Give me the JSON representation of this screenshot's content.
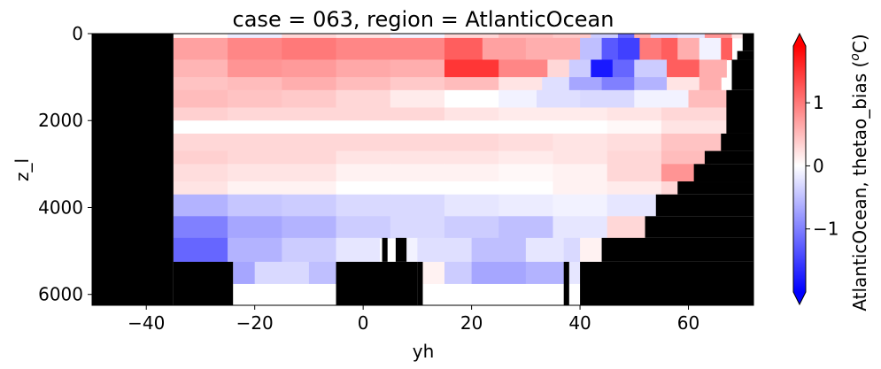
{
  "chart_data": {
    "type": "heatmap",
    "title": "case = 063, region = AtlanticOcean",
    "xlabel": "yh",
    "ylabel": "z_l",
    "colorbar_label": "AtlanticOcean, thetao_bias (",
    "colorbar_unit_sup": "o",
    "colorbar_unit_tail": "C)",
    "xlim": [
      -50,
      72
    ],
    "ylim_inverted": [
      6250,
      0
    ],
    "x_ticks": [
      -40,
      -20,
      0,
      20,
      40,
      60
    ],
    "y_ticks": [
      0,
      2000,
      4000,
      6000
    ],
    "x_tick_labels": [
      "−40",
      "−20",
      "0",
      "20",
      "40",
      "60"
    ],
    "y_tick_labels": [
      "0",
      "2000",
      "4000",
      "6000"
    ],
    "colorbar_ticks": [
      1,
      0,
      -1
    ],
    "colorbar_tick_labels": [
      "1",
      "0",
      "−1"
    ],
    "colorbar_range": [
      -2,
      1.9
    ],
    "colorbar_extend": "both",
    "colormap": "bwr",
    "colors": {
      "missing": "#000000",
      "low": "#0000ff",
      "mid": "#ffffff",
      "high": "#ff0000"
    },
    "layer_bounds_depth": [
      0,
      100,
      600,
      1000,
      1300,
      1700,
      2000,
      2300,
      2700,
      3000,
      3400,
      3700,
      4200,
      4700,
      5250,
      5750,
      6250
    ],
    "layers": [
      [
        [
          -35,
          -25,
          0.05
        ],
        [
          -25,
          -15,
          -0.15
        ],
        [
          -15,
          -5,
          0.3
        ],
        [
          -5,
          5,
          0.2
        ],
        [
          5,
          15,
          -0.1
        ],
        [
          15,
          25,
          0.3
        ],
        [
          25,
          35,
          0.5
        ],
        [
          35,
          42,
          0.4
        ],
        [
          42,
          47,
          -0.4
        ],
        [
          47,
          50,
          -1.2
        ],
        [
          50,
          53,
          0.6
        ],
        [
          53,
          58,
          -0.3
        ],
        [
          58,
          63,
          -0.2
        ],
        [
          63,
          68,
          0.8
        ],
        [
          68,
          70,
          0.2
        ]
      ],
      [
        [
          -35,
          -25,
          0.7
        ],
        [
          -25,
          -15,
          0.9
        ],
        [
          -15,
          -5,
          1.0
        ],
        [
          -5,
          5,
          0.9
        ],
        [
          5,
          15,
          0.9
        ],
        [
          15,
          22,
          1.2
        ],
        [
          22,
          30,
          0.7
        ],
        [
          30,
          40,
          0.6
        ],
        [
          40,
          44,
          -0.5
        ],
        [
          44,
          47,
          -1.3
        ],
        [
          47,
          51,
          -1.5
        ],
        [
          51,
          55,
          1.0
        ],
        [
          55,
          58,
          1.2
        ],
        [
          58,
          62,
          0.6
        ],
        [
          62,
          66,
          -0.1
        ],
        [
          66,
          68,
          1.2
        ]
      ],
      [
        [
          -35,
          -25,
          0.55
        ],
        [
          -25,
          -15,
          0.8
        ],
        [
          -15,
          -5,
          0.75
        ],
        [
          -5,
          5,
          0.65
        ],
        [
          5,
          15,
          0.6
        ],
        [
          15,
          25,
          1.5
        ],
        [
          25,
          34,
          0.9
        ],
        [
          34,
          38,
          0.3
        ],
        [
          38,
          42,
          -0.4
        ],
        [
          42,
          46,
          -1.8
        ],
        [
          46,
          50,
          -1.2
        ],
        [
          50,
          56,
          -0.4
        ],
        [
          56,
          62,
          1.2
        ],
        [
          62,
          67,
          0.6
        ]
      ],
      [
        [
          -35,
          -25,
          0.45
        ],
        [
          -25,
          -15,
          0.5
        ],
        [
          -15,
          -5,
          0.6
        ],
        [
          -5,
          5,
          0.5
        ],
        [
          5,
          15,
          0.4
        ],
        [
          15,
          25,
          0.5
        ],
        [
          25,
          33,
          0.2
        ],
        [
          33,
          38,
          -0.25
        ],
        [
          38,
          44,
          -0.7
        ],
        [
          44,
          50,
          -1.0
        ],
        [
          50,
          56,
          -0.6
        ],
        [
          56,
          62,
          0.2
        ],
        [
          62,
          66,
          0.6
        ]
      ],
      [
        [
          -35,
          -25,
          0.5
        ],
        [
          -25,
          -15,
          0.45
        ],
        [
          -15,
          -5,
          0.4
        ],
        [
          -5,
          5,
          0.3
        ],
        [
          5,
          15,
          0.15
        ],
        [
          15,
          25,
          0.0
        ],
        [
          25,
          32,
          -0.1
        ],
        [
          32,
          40,
          -0.25
        ],
        [
          40,
          50,
          -0.3
        ],
        [
          50,
          60,
          -0.1
        ],
        [
          60,
          67,
          0.5
        ]
      ],
      [
        [
          -35,
          -25,
          0.35
        ],
        [
          -25,
          -15,
          0.3
        ],
        [
          -15,
          -5,
          0.3
        ],
        [
          -5,
          5,
          0.3
        ],
        [
          5,
          15,
          0.3
        ],
        [
          15,
          25,
          0.2
        ],
        [
          25,
          35,
          0.15
        ],
        [
          35,
          45,
          0.15
        ],
        [
          45,
          55,
          0.2
        ],
        [
          55,
          67,
          0.3
        ]
      ],
      [
        [
          -35,
          -25,
          0.0
        ],
        [
          -25,
          -15,
          0.0
        ],
        [
          -15,
          -5,
          0.0
        ],
        [
          -5,
          5,
          0.0
        ],
        [
          5,
          15,
          0.0
        ],
        [
          15,
          25,
          0.0
        ],
        [
          25,
          35,
          0.0
        ],
        [
          35,
          45,
          0.0
        ],
        [
          45,
          55,
          0.05
        ],
        [
          55,
          67,
          0.2
        ]
      ],
      [
        [
          -35,
          -25,
          0.3
        ],
        [
          -25,
          -15,
          0.3
        ],
        [
          -15,
          -5,
          0.3
        ],
        [
          -5,
          5,
          0.3
        ],
        [
          5,
          15,
          0.3
        ],
        [
          15,
          25,
          0.3
        ],
        [
          25,
          35,
          0.25
        ],
        [
          35,
          45,
          0.2
        ],
        [
          45,
          55,
          0.25
        ],
        [
          55,
          67,
          0.45
        ]
      ],
      [
        [
          -35,
          -25,
          0.35
        ],
        [
          -25,
          -15,
          0.3
        ],
        [
          -15,
          -5,
          0.3
        ],
        [
          -5,
          5,
          0.2
        ],
        [
          5,
          15,
          0.2
        ],
        [
          15,
          25,
          0.2
        ],
        [
          25,
          35,
          0.15
        ],
        [
          35,
          45,
          0.2
        ],
        [
          45,
          55,
          0.3
        ],
        [
          55,
          64,
          0.5
        ]
      ],
      [
        [
          -35,
          -25,
          0.25
        ],
        [
          -25,
          -15,
          0.2
        ],
        [
          -15,
          -5,
          0.2
        ],
        [
          -5,
          5,
          0.1
        ],
        [
          5,
          15,
          0.1
        ],
        [
          15,
          25,
          0.1
        ],
        [
          25,
          35,
          0.05
        ],
        [
          35,
          45,
          0.1
        ],
        [
          45,
          55,
          0.3
        ],
        [
          55,
          61,
          0.8
        ]
      ],
      [
        [
          -35,
          -25,
          0.2
        ],
        [
          -25,
          -15,
          0.1
        ],
        [
          -15,
          -5,
          0.1
        ],
        [
          -5,
          5,
          0.0
        ],
        [
          5,
          15,
          0.0
        ],
        [
          15,
          25,
          0.0
        ],
        [
          25,
          35,
          0.0
        ],
        [
          35,
          45,
          0.1
        ],
        [
          45,
          55,
          0.15
        ],
        [
          55,
          58,
          0.3
        ]
      ],
      [
        [
          -35,
          -25,
          -0.6
        ],
        [
          -25,
          -15,
          -0.45
        ],
        [
          -15,
          -5,
          -0.4
        ],
        [
          -5,
          5,
          -0.3
        ],
        [
          5,
          15,
          -0.3
        ],
        [
          15,
          25,
          -0.2
        ],
        [
          25,
          35,
          -0.15
        ],
        [
          35,
          45,
          -0.1
        ],
        [
          45,
          55,
          -0.2
        ]
      ],
      [
        [
          -35,
          -25,
          -1.0
        ],
        [
          -25,
          -15,
          -0.7
        ],
        [
          -15,
          -5,
          -0.6
        ],
        [
          -5,
          5,
          -0.4
        ],
        [
          5,
          15,
          -0.3
        ],
        [
          15,
          25,
          -0.4
        ],
        [
          25,
          35,
          -0.5
        ],
        [
          35,
          45,
          -0.2
        ],
        [
          45,
          52,
          0.3
        ]
      ],
      [
        [
          -35,
          -25,
          -1.2
        ],
        [
          -25,
          -15,
          -0.6
        ],
        [
          -15,
          -5,
          -0.4
        ],
        [
          -5,
          3,
          -0.2
        ],
        [
          7,
          10,
          -0.1
        ],
        [
          10,
          20,
          -0.25
        ],
        [
          20,
          30,
          -0.5
        ],
        [
          30,
          37,
          -0.2
        ],
        [
          37,
          40,
          -0.3
        ],
        [
          40,
          45,
          0.1
        ]
      ],
      [
        [
          -24,
          -20,
          -0.7
        ],
        [
          -20,
          -10,
          -0.3
        ],
        [
          -10,
          -5,
          -0.5
        ],
        [
          10,
          15,
          0.1
        ],
        [
          15,
          20,
          -0.4
        ],
        [
          20,
          30,
          -0.7
        ],
        [
          30,
          37,
          -0.6
        ],
        [
          38,
          40,
          -0.2
        ]
      ]
    ],
    "bathymetry_mask": [
      [
        -50,
        -35,
        0,
        6250
      ],
      [
        -35,
        -24,
        5250,
        6250
      ],
      [
        -5,
        10,
        5250,
        6250
      ],
      [
        3.5,
        4.5,
        4700,
        5250
      ],
      [
        6,
        8,
        4700,
        5250
      ],
      [
        10,
        11,
        5250,
        6250
      ],
      [
        37,
        38,
        5250,
        6250
      ],
      [
        40,
        72,
        5250,
        6250
      ],
      [
        44,
        72,
        4700,
        5250
      ],
      [
        52,
        72,
        4200,
        4700
      ],
      [
        54,
        72,
        3700,
        4200
      ],
      [
        58,
        72,
        3400,
        3700
      ],
      [
        61,
        72,
        3000,
        3400
      ],
      [
        63,
        72,
        2700,
        3000
      ],
      [
        66,
        72,
        2300,
        2700
      ],
      [
        67,
        72,
        1300,
        2300
      ],
      [
        68,
        72,
        600,
        1300
      ],
      [
        69,
        72,
        400,
        600
      ],
      [
        70,
        72,
        0,
        400
      ]
    ]
  }
}
